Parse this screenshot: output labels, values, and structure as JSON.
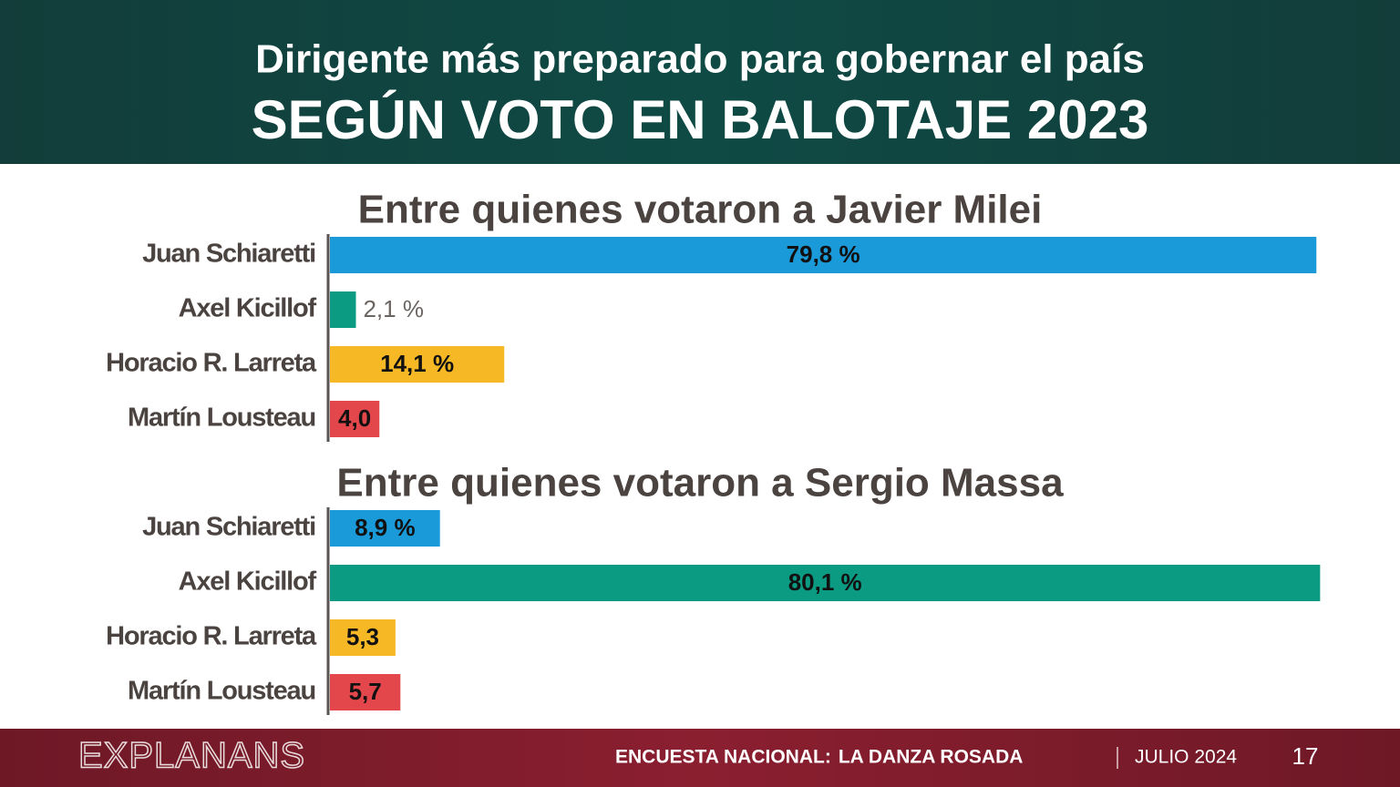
{
  "header": {
    "title": "Dirigente más preparado para gobernar el país",
    "subtitle": "SEGÚN VOTO EN BALOTAJE 2023"
  },
  "chart_data": [
    {
      "type": "bar",
      "orientation": "horizontal",
      "title": "Entre quienes votaron a Javier Milei",
      "categories": [
        "Juan Schiaretti",
        "Axel Kicillof",
        "Horacio R. Larreta",
        "Martín Lousteau"
      ],
      "values": [
        79.8,
        2.1,
        14.1,
        4.0
      ],
      "value_labels": [
        "79,8 %",
        "2,1 %",
        "14,1 %",
        "4,0"
      ],
      "colors": [
        "#1a9ad9",
        "#0b9a82",
        "#f7b825",
        "#e4474b"
      ],
      "xlim": [
        0,
        80
      ]
    },
    {
      "type": "bar",
      "orientation": "horizontal",
      "title": "Entre quienes votaron a Sergio Massa",
      "categories": [
        "Juan Schiaretti",
        "Axel Kicillof",
        "Horacio R. Larreta",
        "Martín Lousteau"
      ],
      "values": [
        8.9,
        80.1,
        5.3,
        5.7
      ],
      "value_labels": [
        "8,9 %",
        "80,1 %",
        "5,3",
        "5,7"
      ],
      "colors": [
        "#1a9ad9",
        "#0b9a82",
        "#f7b825",
        "#e4474b"
      ],
      "xlim": [
        0,
        80
      ]
    }
  ],
  "footer": {
    "logo": "EXPLANANS",
    "survey": "ENCUESTA NACIONAL:",
    "survey_name": "LA DANZA ROSADA",
    "date": "JULIO 2024",
    "page": "17"
  }
}
